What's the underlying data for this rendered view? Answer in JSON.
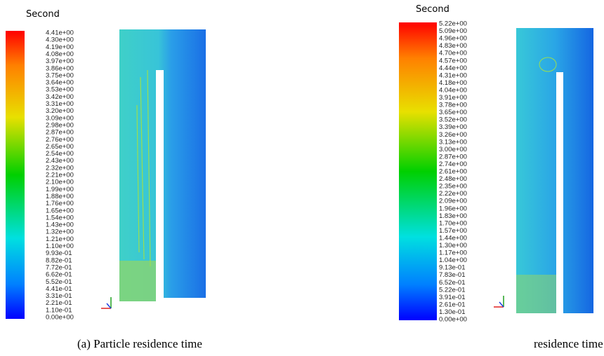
{
  "panels": [
    {
      "unit": "Second",
      "colorbar_labels": [
        "4.41e+00",
        "4.30e+00",
        "4.19e+00",
        "4.08e+00",
        "3.97e+00",
        "3.86e+00",
        "3.75e+00",
        "3.64e+00",
        "3.53e+00",
        "3.42e+00",
        "3.31e+00",
        "3.20e+00",
        "3.09e+00",
        "2.98e+00",
        "2.87e+00",
        "2.76e+00",
        "2.65e+00",
        "2.54e+00",
        "2.43e+00",
        "2.32e+00",
        "2.21e+00",
        "2.10e+00",
        "1.99e+00",
        "1.88e+00",
        "1.76e+00",
        "1.65e+00",
        "1.54e+00",
        "1.43e+00",
        "1.32e+00",
        "1.21e+00",
        "1.10e+00",
        "9.93e-01",
        "8.82e-01",
        "7.72e-01",
        "6.62e-01",
        "5.52e-01",
        "4.41e-01",
        "3.31e-01",
        "2.21e-01",
        "1.10e-01",
        "0.00e+00"
      ],
      "caption": "(a) Particle residence time"
    },
    {
      "unit": "Second",
      "colorbar_labels": [
        "5.22e+00",
        "5.09e+00",
        "4.96e+00",
        "4.83e+00",
        "4.70e+00",
        "4.57e+00",
        "4.44e+00",
        "4.31e+00",
        "4.18e+00",
        "4.04e+00",
        "3.91e+00",
        "3.78e+00",
        "3.65e+00",
        "3.52e+00",
        "3.39e+00",
        "3.26e+00",
        "3.13e+00",
        "3.00e+00",
        "2.87e+00",
        "2.74e+00",
        "2.61e+00",
        "2.48e+00",
        "2.35e+00",
        "2.22e+00",
        "2.09e+00",
        "1.96e+00",
        "1.83e+00",
        "1.70e+00",
        "1.57e+00",
        "1.44e+00",
        "1.30e+00",
        "1.17e+00",
        "1.04e+00",
        "9.13e-01",
        "7.83e-01",
        "6.52e-01",
        "5.22e-01",
        "3.91e-01",
        "2.61e-01",
        "1.30e-01",
        "0.00e+00"
      ],
      "caption": "residence time"
    }
  ]
}
